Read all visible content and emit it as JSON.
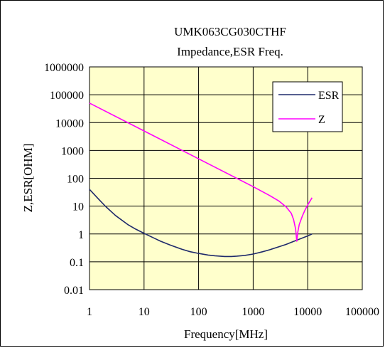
{
  "chart_data": {
    "type": "line",
    "title": "UMK063CG030CTHF",
    "subtitle": "Impedance,ESR Freq.",
    "xlabel": "Frequency[MHz]",
    "ylabel": "Z,ESR[OHM]",
    "x_scale": "log",
    "y_scale": "log",
    "xlim": [
      1,
      100000
    ],
    "ylim": [
      0.01,
      1000000
    ],
    "x_ticks": [
      "1",
      "10",
      "100",
      "1000",
      "10000",
      "100000"
    ],
    "y_ticks": [
      "0.01",
      "0.1",
      "1",
      "10",
      "100",
      "1000",
      "10000",
      "100000",
      "1000000"
    ],
    "grid": true,
    "legend_position": "top-right",
    "plot_background": "#ffffcc",
    "series": [
      {
        "name": "ESR",
        "color": "#1f2a6b",
        "x": [
          1,
          1.5,
          2,
          3,
          5,
          7,
          10,
          15,
          20,
          30,
          50,
          70,
          100,
          150,
          200,
          300,
          400,
          500,
          700,
          1000,
          1500,
          2000,
          3000,
          4000,
          5000,
          7000,
          10000,
          12000
        ],
        "y": [
          40,
          17,
          9.5,
          4.6,
          2.2,
          1.5,
          1.05,
          0.72,
          0.55,
          0.4,
          0.28,
          0.23,
          0.2,
          0.175,
          0.165,
          0.155,
          0.155,
          0.16,
          0.17,
          0.19,
          0.23,
          0.27,
          0.35,
          0.42,
          0.5,
          0.65,
          0.85,
          1.0
        ]
      },
      {
        "name": "Z",
        "color": "#ff00ff",
        "x": [
          1,
          10,
          100,
          1000,
          2000,
          3000,
          4000,
          5000,
          5500,
          6000,
          6300,
          6600,
          7000,
          8000,
          9000,
          10000,
          11000,
          12000
        ],
        "y": [
          50000,
          5000,
          500,
          50,
          24,
          15,
          9.5,
          5.5,
          3.3,
          1.5,
          0.55,
          1.2,
          2.2,
          4.5,
          7.5,
          11,
          15,
          20
        ]
      }
    ]
  }
}
